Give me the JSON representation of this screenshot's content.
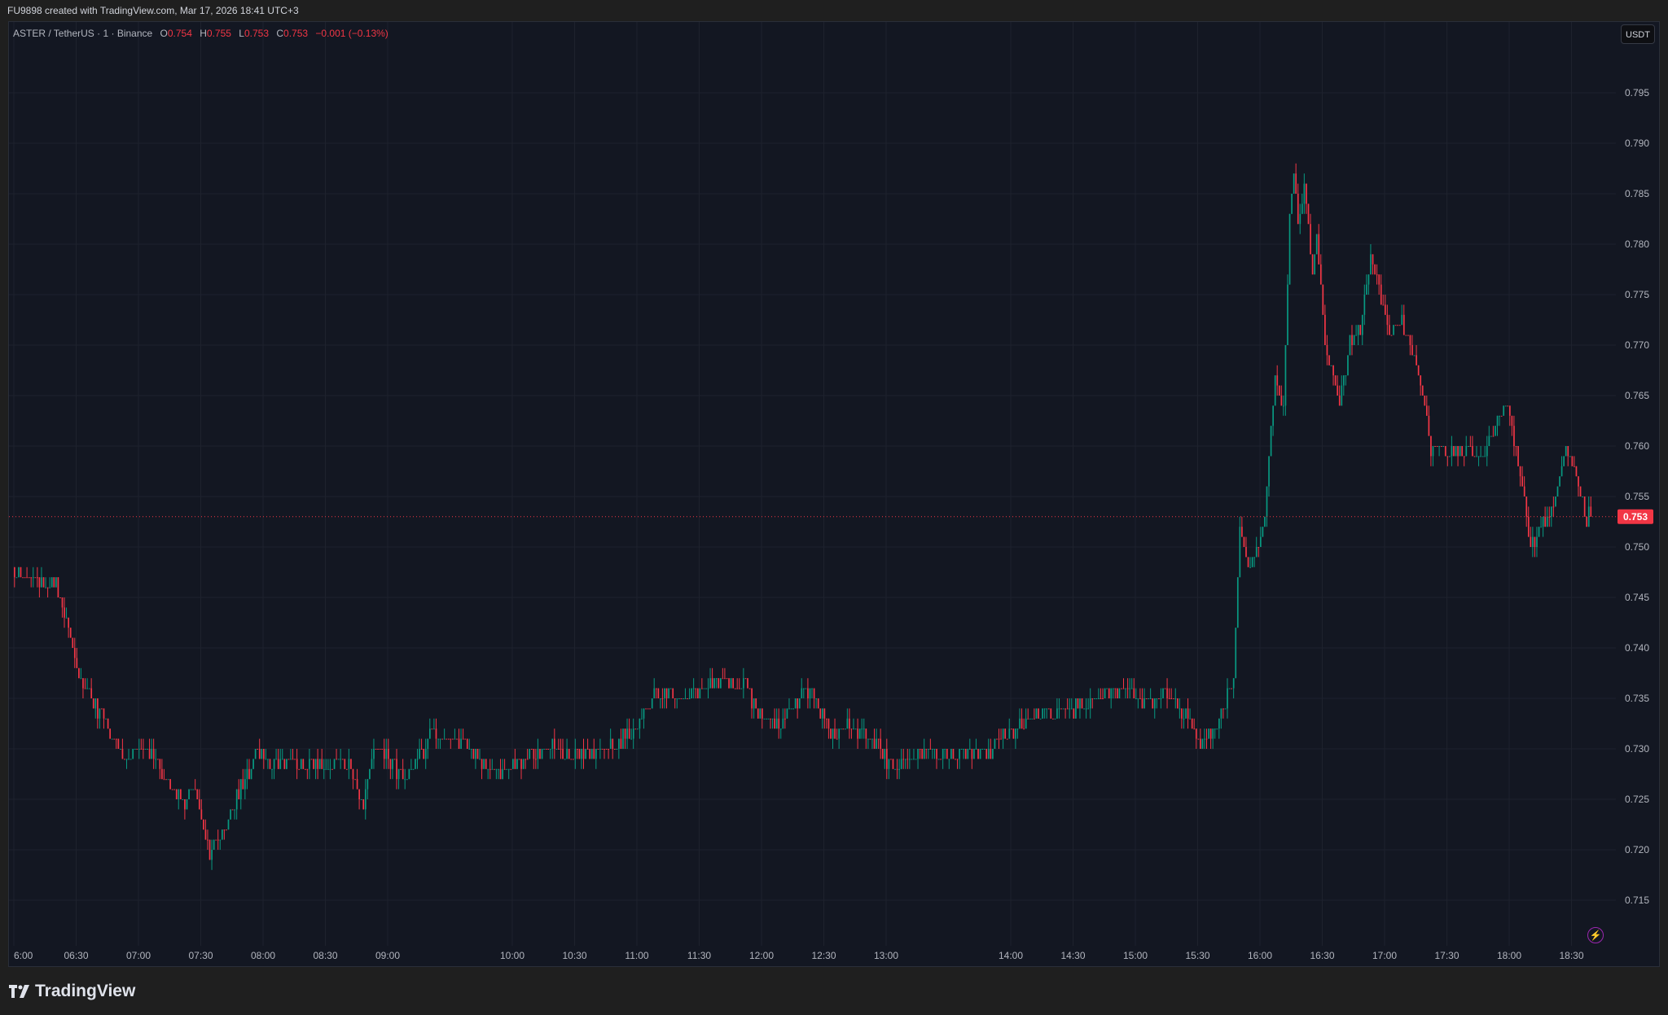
{
  "header": {
    "credit": "FU9898 created with TradingView.com, Mar 17, 2026 18:41 UTC+3"
  },
  "legend": {
    "symbol": "ASTER / TetherUS · 1 · Binance",
    "o_label": "O",
    "o": "0.754",
    "h_label": "H",
    "h": "0.755",
    "l_label": "L",
    "l": "0.753",
    "c_label": "C",
    "c": "0.753",
    "change": "−0.001 (−0.13%)"
  },
  "currency_button": "USDT",
  "footer": {
    "brand": "TradingView",
    "logo_icon": "tradingview-logo-icon"
  },
  "lightning_icon": "lightning-icon",
  "colors": {
    "up": "#089981",
    "down": "#f23645",
    "background": "#131722",
    "grid": "#1e222d",
    "last_price": "#f23645"
  },
  "chart_data": {
    "type": "candlestick",
    "interval": "1",
    "title": "ASTER / TetherUS · 1 · Binance",
    "ylim": [
      0.711,
      0.799
    ],
    "grid": true,
    "y_ticks": [
      "0.795",
      "0.790",
      "0.785",
      "0.780",
      "0.775",
      "0.770",
      "0.765",
      "0.760",
      "0.755",
      "0.750",
      "0.745",
      "0.740",
      "0.735",
      "0.730",
      "0.725",
      "0.720",
      "0.715"
    ],
    "x_ticks": [
      "6:00",
      "06:30",
      "07:00",
      "07:30",
      "08:00",
      "08:30",
      "09:00",
      "10:00",
      "10:30",
      "11:00",
      "11:30",
      "12:00",
      "12:30",
      "13:00",
      "14:00",
      "14:30",
      "15:00",
      "15:30",
      "16:00",
      "16:30",
      "17:00",
      "17:30",
      "18:00",
      "18:30"
    ],
    "last_price": "0.753",
    "price_path": [
      [
        "06:00",
        0.7475
      ],
      [
        "06:11",
        0.7468
      ],
      [
        "06:16",
        0.7457
      ],
      [
        "06:21",
        0.7465
      ],
      [
        "06:26",
        0.7426
      ],
      [
        "06:32",
        0.7373
      ],
      [
        "06:39",
        0.7347
      ],
      [
        "06:47",
        0.7315
      ],
      [
        "06:54",
        0.7289
      ],
      [
        "07:02",
        0.7305
      ],
      [
        "07:10",
        0.7289
      ],
      [
        "07:15",
        0.7262
      ],
      [
        "07:23",
        0.7247
      ],
      [
        "07:28",
        0.7262
      ],
      [
        "07:35",
        0.7199
      ],
      [
        "07:40",
        0.721
      ],
      [
        "07:48",
        0.7252
      ],
      [
        "07:58",
        0.7299
      ],
      [
        "08:06",
        0.7286
      ],
      [
        "08:26",
        0.7286
      ],
      [
        "08:42",
        0.7283
      ],
      [
        "08:49",
        0.7241
      ],
      [
        "08:54",
        0.7305
      ],
      [
        "09:10",
        0.7268
      ],
      [
        "09:22",
        0.7315
      ],
      [
        "09:38",
        0.7305
      ],
      [
        "09:48",
        0.7283
      ],
      [
        "09:58",
        0.7278
      ],
      [
        "10:08",
        0.7292
      ],
      [
        "10:19",
        0.7305
      ],
      [
        "10:29",
        0.7294
      ],
      [
        "10:44",
        0.7299
      ],
      [
        "10:59",
        0.7315
      ],
      [
        "11:10",
        0.7357
      ],
      [
        "11:20",
        0.7347
      ],
      [
        "11:40",
        0.7368
      ],
      [
        "11:53",
        0.7368
      ],
      [
        "11:58",
        0.7336
      ],
      [
        "12:08",
        0.732
      ],
      [
        "12:19",
        0.7352
      ],
      [
        "12:26",
        0.7357
      ],
      [
        "12:34",
        0.731
      ],
      [
        "12:41",
        0.7326
      ],
      [
        "12:57",
        0.7305
      ],
      [
        "13:04",
        0.7278
      ],
      [
        "13:17",
        0.7294
      ],
      [
        "13:32",
        0.7292
      ],
      [
        "13:50",
        0.7296
      ],
      [
        "13:58",
        0.7315
      ],
      [
        "14:13",
        0.7331
      ],
      [
        "14:34",
        0.7341
      ],
      [
        "14:46",
        0.7352
      ],
      [
        "14:55",
        0.7357
      ],
      [
        "15:04",
        0.7347
      ],
      [
        "15:14",
        0.7352
      ],
      [
        "15:25",
        0.7336
      ],
      [
        "15:32",
        0.7305
      ],
      [
        "15:40",
        0.7326
      ],
      [
        "15:48",
        0.7368
      ],
      [
        "15:51",
        0.752
      ],
      [
        "15:55",
        0.7473
      ],
      [
        "16:03",
        0.7526
      ],
      [
        "16:08",
        0.7673
      ],
      [
        "16:12",
        0.7631
      ],
      [
        "16:15",
        0.7831
      ],
      [
        "16:17",
        0.7873
      ],
      [
        "16:19",
        0.782
      ],
      [
        "16:22",
        0.7863
      ],
      [
        "16:26",
        0.7768
      ],
      [
        "16:28",
        0.7815
      ],
      [
        "16:32",
        0.7705
      ],
      [
        "16:39",
        0.7641
      ],
      [
        "16:44",
        0.7705
      ],
      [
        "16:49",
        0.7715
      ],
      [
        "16:54",
        0.7789
      ],
      [
        "16:58",
        0.7757
      ],
      [
        "17:03",
        0.771
      ],
      [
        "17:09",
        0.7726
      ],
      [
        "17:17",
        0.7673
      ],
      [
        "17:23",
        0.7599
      ],
      [
        "17:30",
        0.7594
      ],
      [
        "17:40",
        0.7594
      ],
      [
        "17:48",
        0.7589
      ],
      [
        "17:55",
        0.7626
      ],
      [
        "17:59",
        0.7641
      ],
      [
        "18:03",
        0.761
      ],
      [
        "18:08",
        0.7547
      ],
      [
        "18:11",
        0.7499
      ],
      [
        "18:17",
        0.7526
      ],
      [
        "18:22",
        0.7536
      ],
      [
        "18:28",
        0.7599
      ],
      [
        "18:33",
        0.7573
      ],
      [
        "18:37",
        0.7531
      ],
      [
        "18:40",
        0.753
      ]
    ]
  }
}
